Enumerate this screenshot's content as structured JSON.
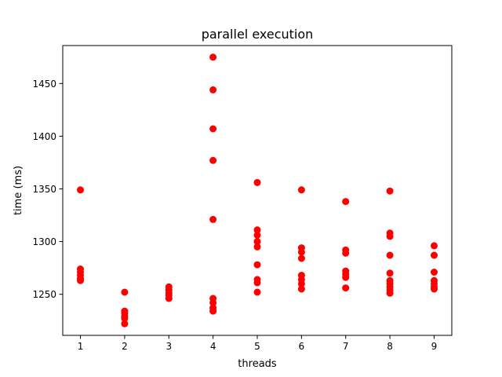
{
  "chart_data": {
    "type": "scatter",
    "title": "parallel execution",
    "xlabel": "threads",
    "ylabel": "time (ms)",
    "xlim": [
      0.6,
      9.4
    ],
    "ylim": [
      1211,
      1486
    ],
    "xticks": [
      1,
      2,
      3,
      4,
      5,
      6,
      7,
      8,
      9
    ],
    "yticks": [
      1250,
      1300,
      1350,
      1400,
      1450
    ],
    "grid": false,
    "marker_color": "#ff0000",
    "series": [
      {
        "points": [
          {
            "x": 1,
            "y": 1349
          },
          {
            "x": 1,
            "y": 1274
          },
          {
            "x": 1,
            "y": 1271
          },
          {
            "x": 1,
            "y": 1268
          },
          {
            "x": 1,
            "y": 1265
          },
          {
            "x": 1,
            "y": 1263
          },
          {
            "x": 2,
            "y": 1252
          },
          {
            "x": 2,
            "y": 1234
          },
          {
            "x": 2,
            "y": 1232
          },
          {
            "x": 2,
            "y": 1229
          },
          {
            "x": 2,
            "y": 1227
          },
          {
            "x": 2,
            "y": 1222
          },
          {
            "x": 3,
            "y": 1257
          },
          {
            "x": 3,
            "y": 1254
          },
          {
            "x": 3,
            "y": 1251
          },
          {
            "x": 3,
            "y": 1249
          },
          {
            "x": 3,
            "y": 1246
          },
          {
            "x": 4,
            "y": 1475
          },
          {
            "x": 4,
            "y": 1444
          },
          {
            "x": 4,
            "y": 1407
          },
          {
            "x": 4,
            "y": 1377
          },
          {
            "x": 4,
            "y": 1321
          },
          {
            "x": 4,
            "y": 1246
          },
          {
            "x": 4,
            "y": 1242
          },
          {
            "x": 4,
            "y": 1237
          },
          {
            "x": 4,
            "y": 1234
          },
          {
            "x": 5,
            "y": 1356
          },
          {
            "x": 5,
            "y": 1311
          },
          {
            "x": 5,
            "y": 1306
          },
          {
            "x": 5,
            "y": 1300
          },
          {
            "x": 5,
            "y": 1295
          },
          {
            "x": 5,
            "y": 1278
          },
          {
            "x": 5,
            "y": 1264
          },
          {
            "x": 5,
            "y": 1261
          },
          {
            "x": 5,
            "y": 1252
          },
          {
            "x": 6,
            "y": 1349
          },
          {
            "x": 6,
            "y": 1294
          },
          {
            "x": 6,
            "y": 1290
          },
          {
            "x": 6,
            "y": 1284
          },
          {
            "x": 6,
            "y": 1268
          },
          {
            "x": 6,
            "y": 1264
          },
          {
            "x": 6,
            "y": 1260
          },
          {
            "x": 6,
            "y": 1255
          },
          {
            "x": 7,
            "y": 1338
          },
          {
            "x": 7,
            "y": 1292
          },
          {
            "x": 7,
            "y": 1289
          },
          {
            "x": 7,
            "y": 1272
          },
          {
            "x": 7,
            "y": 1269
          },
          {
            "x": 7,
            "y": 1266
          },
          {
            "x": 7,
            "y": 1256
          },
          {
            "x": 8,
            "y": 1348
          },
          {
            "x": 8,
            "y": 1308
          },
          {
            "x": 8,
            "y": 1305
          },
          {
            "x": 8,
            "y": 1287
          },
          {
            "x": 8,
            "y": 1270
          },
          {
            "x": 8,
            "y": 1263
          },
          {
            "x": 8,
            "y": 1260
          },
          {
            "x": 8,
            "y": 1257
          },
          {
            "x": 8,
            "y": 1254
          },
          {
            "x": 8,
            "y": 1251
          },
          {
            "x": 9,
            "y": 1296
          },
          {
            "x": 9,
            "y": 1287
          },
          {
            "x": 9,
            "y": 1271
          },
          {
            "x": 9,
            "y": 1263
          },
          {
            "x": 9,
            "y": 1260
          },
          {
            "x": 9,
            "y": 1257
          },
          {
            "x": 9,
            "y": 1255
          }
        ]
      }
    ]
  }
}
